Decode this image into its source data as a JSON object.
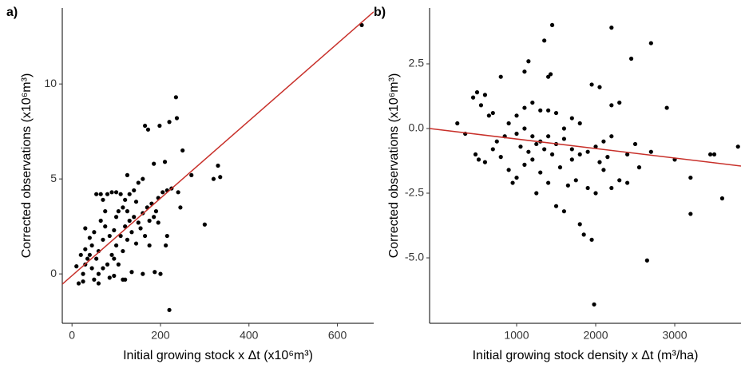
{
  "chart_data": [
    {
      "type": "scatter",
      "panel_label": "a)",
      "x_label": "Initial growing stock x Δt (x10⁶m³)",
      "y_label": "Corrected observations (x10⁶m³)",
      "xlim": [
        -22,
        682
      ],
      "ylim": [
        -2.6,
        14
      ],
      "xticks": [
        0,
        200,
        400,
        600
      ],
      "yticks": [
        0,
        5,
        10
      ],
      "point_color": "#000000",
      "line_color": "#c8302a",
      "fit_line": {
        "x": [
          -22,
          682
        ],
        "y": [
          -0.54,
          13.8
        ]
      },
      "x": [
        655,
        235,
        237,
        165,
        172,
        198,
        220,
        250,
        270,
        335,
        320,
        330,
        300,
        220,
        245,
        205,
        215,
        240,
        225,
        195,
        190,
        185,
        210,
        125,
        150,
        160,
        140,
        200,
        187,
        160,
        215,
        212,
        175,
        135,
        10,
        15,
        25,
        30,
        40,
        45,
        50,
        55,
        65,
        80,
        75,
        90,
        100,
        110,
        120,
        105,
        115,
        20,
        35,
        60,
        70,
        85,
        95,
        100,
        110,
        120,
        130,
        140,
        150,
        160,
        170,
        180,
        90,
        80,
        70,
        60,
        55,
        45,
        50,
        65,
        75,
        95,
        105,
        115,
        125,
        135,
        145,
        155,
        165,
        175,
        185,
        195,
        40,
        30,
        25,
        85,
        95,
        115,
        120,
        60,
        100,
        125,
        130,
        145,
        30,
        70
      ],
      "y": [
        13.1,
        9.3,
        8.2,
        7.8,
        7.6,
        7.8,
        8.0,
        6.5,
        5.2,
        5.1,
        5.0,
        5.7,
        2.6,
        -1.9,
        3.5,
        4.3,
        4.4,
        4.3,
        4.5,
        4.0,
        3.3,
        5.8,
        5.9,
        5.2,
        4.8,
        5.0,
        4.4,
        0.0,
        0.1,
        0.0,
        2.0,
        1.5,
        1.5,
        0.1,
        0.4,
        -0.5,
        -0.4,
        0.5,
        1.0,
        0.3,
        -0.3,
        4.2,
        4.2,
        4.2,
        3.3,
        4.3,
        4.3,
        4.2,
        3.9,
        3.3,
        3.5,
        1.0,
        0.8,
        1.2,
        1.8,
        2.0,
        2.3,
        1.5,
        2.0,
        2.5,
        2.8,
        3.0,
        2.7,
        3.2,
        3.5,
        3.7,
        1.0,
        0.5,
        0.3,
        0.0,
        0.8,
        1.5,
        2.2,
        2.8,
        2.5,
        0.8,
        0.5,
        1.2,
        1.8,
        2.2,
        1.6,
        2.4,
        2.0,
        2.8,
        3.0,
        2.7,
        1.9,
        1.3,
        0.0,
        -0.2,
        -0.1,
        -0.3,
        -0.3,
        -0.5,
        3.0,
        3.3,
        4.2,
        3.8,
        2.4,
        3.9
      ]
    },
    {
      "type": "scatter",
      "panel_label": "b)",
      "x_label": "Initial growing stock density x Δt (m³/ha)",
      "y_label": "Corrected observations (x10⁶m³)",
      "xlim": [
        -101,
        3838
      ],
      "ylim": [
        -7.53,
        4.66
      ],
      "xticks": [
        1000,
        2000,
        3000
      ],
      "yticks": [
        2.5,
        {
          "value": 0,
          "label": "0.0"
        },
        -2.5,
        {
          "value": -5,
          "label": "-5.0"
        }
      ],
      "point_color": "#000000",
      "line_color": "#c8302a",
      "fit_line": {
        "x": [
          -101,
          3838
        ],
        "y": [
          0.0,
          -1.45
        ]
      },
      "x": [
        1450,
        2200,
        1350,
        2700,
        1150,
        2450,
        1430,
        1400,
        800,
        1100,
        1950,
        2050,
        2900,
        2200,
        2300,
        1200,
        1000,
        1100,
        1300,
        1500,
        1700,
        1800,
        600,
        500,
        450,
        550,
        650,
        700,
        900,
        1000,
        1100,
        1200,
        1300,
        1400,
        1500,
        1600,
        1700,
        1800,
        1900,
        2000,
        2100,
        2200,
        2500,
        2550,
        2700,
        3000,
        3200,
        3200,
        3450,
        3500,
        3600,
        3800,
        480,
        520,
        600,
        700,
        800,
        900,
        1000,
        950,
        1100,
        1200,
        1250,
        1300,
        1400,
        1500,
        1600,
        1650,
        1750,
        1800,
        1850,
        1950,
        1900,
        2000,
        2100,
        2200,
        2300,
        2400,
        2650,
        1980,
        1700,
        1550,
        1450,
        1350,
        1250,
        1150,
        1050,
        850,
        750,
        2150,
        2050,
        1600,
        1400,
        250,
        350,
        2400
      ],
      "y": [
        4.0,
        3.9,
        3.4,
        3.3,
        2.6,
        2.7,
        2.1,
        2.0,
        2.0,
        2.2,
        1.7,
        1.6,
        0.8,
        0.9,
        1.0,
        1.0,
        0.5,
        0.8,
        0.7,
        0.6,
        0.4,
        0.2,
        1.3,
        1.4,
        1.2,
        0.9,
        0.5,
        0.6,
        0.2,
        -0.2,
        0.0,
        -0.3,
        -0.5,
        -0.3,
        -0.6,
        -0.4,
        -0.8,
        -1.0,
        -0.9,
        -0.7,
        -0.5,
        -0.3,
        -0.6,
        -1.5,
        -0.9,
        -1.2,
        -1.9,
        -3.3,
        -1.0,
        -1.0,
        -2.7,
        -0.7,
        -1.0,
        -1.2,
        -1.3,
        -0.8,
        -1.1,
        -1.6,
        -1.9,
        -2.1,
        -1.4,
        -1.2,
        -2.5,
        -1.7,
        -2.1,
        -3.0,
        -3.2,
        -2.2,
        -2.0,
        -3.7,
        -4.1,
        -4.3,
        -2.3,
        -2.5,
        -1.6,
        -2.3,
        -2.0,
        -2.1,
        -5.1,
        -6.8,
        -1.2,
        -1.5,
        -1.0,
        -0.8,
        -0.6,
        -0.9,
        -0.7,
        -0.3,
        -0.5,
        -1.1,
        -1.3,
        0.0,
        0.7,
        0.2,
        -0.2,
        -1.0
      ]
    }
  ]
}
